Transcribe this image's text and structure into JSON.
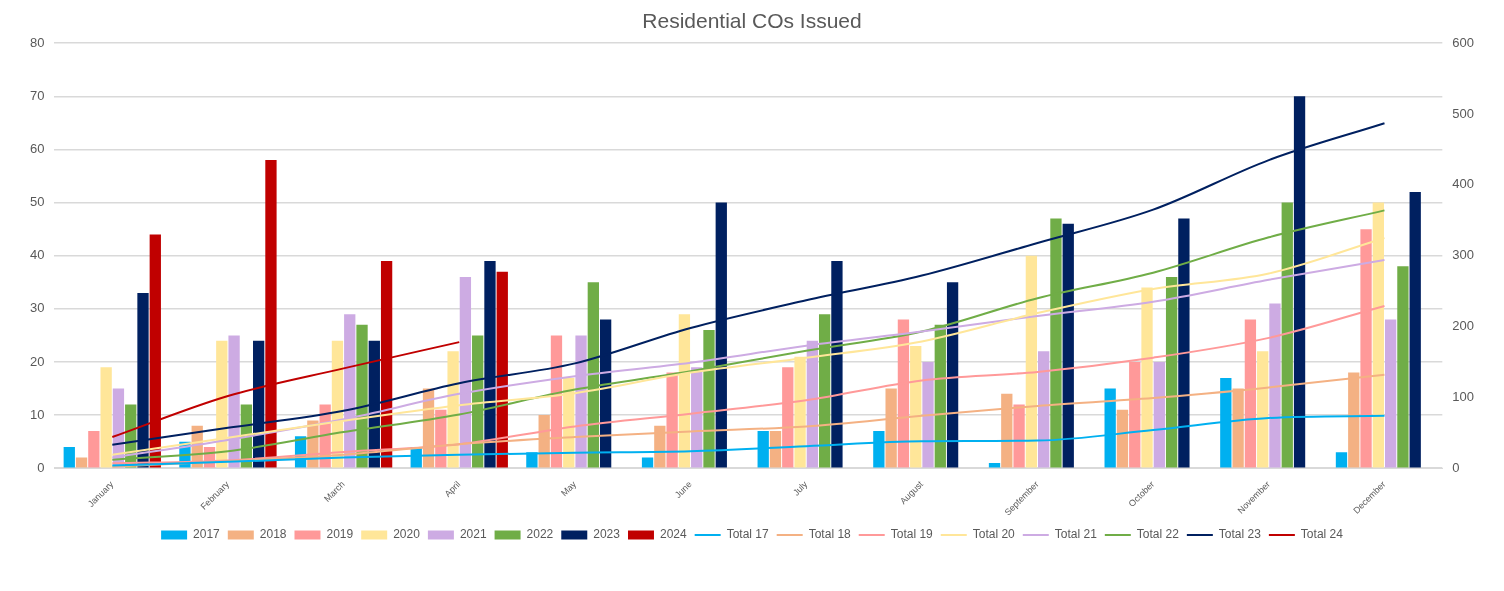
{
  "chart_data": {
    "type": "bar",
    "title": "Residential COs Issued",
    "categories": [
      "January",
      "February",
      "March",
      "April",
      "May",
      "June",
      "July",
      "August",
      "September",
      "October",
      "November",
      "December"
    ],
    "ylim": [
      0,
      80
    ],
    "yticks": [
      0,
      10,
      20,
      30,
      40,
      50,
      60,
      70,
      80
    ],
    "y2lim": [
      0,
      600
    ],
    "y2ticks": [
      0,
      100,
      200,
      300,
      400,
      500,
      600
    ],
    "grid": "y",
    "legend": "bottom",
    "marker": "none",
    "line_style": "solid",
    "series": [
      {
        "name": "2017",
        "color": "#00b0f0",
        "values": [
          4,
          5,
          6,
          4,
          3,
          2,
          7,
          7,
          1,
          15,
          17,
          3
        ]
      },
      {
        "name": "2018",
        "color": "#f4b183",
        "values": [
          2,
          8,
          9,
          15,
          10,
          8,
          7,
          15,
          14,
          11,
          15,
          18
        ]
      },
      {
        "name": "2019",
        "color": "#ff9999",
        "values": [
          7,
          4,
          12,
          11,
          25,
          18,
          19,
          28,
          12,
          20,
          28,
          45
        ]
      },
      {
        "name": "2020",
        "color": "#ffe699",
        "values": [
          19,
          24,
          24,
          22,
          17,
          29,
          21,
          23,
          40,
          34,
          22,
          50
        ]
      },
      {
        "name": "2021",
        "color": "#cdabe3",
        "values": [
          15,
          25,
          29,
          36,
          25,
          19,
          24,
          20,
          22,
          20,
          31,
          28
        ]
      },
      {
        "name": "2022",
        "color": "#70ad47",
        "values": [
          12,
          12,
          27,
          25,
          35,
          26,
          29,
          27,
          47,
          36,
          50,
          38
        ]
      },
      {
        "name": "2023",
        "color": "#002060",
        "values": [
          33,
          24,
          24,
          39,
          28,
          50,
          39,
          35,
          46,
          47,
          70,
          52
        ]
      },
      {
        "name": "2024",
        "color": "#c00000",
        "values": [
          44,
          58,
          39,
          37,
          null,
          null,
          null,
          null,
          null,
          null,
          null,
          null
        ]
      },
      {
        "name": "Total 17",
        "type": "line",
        "axis": "y2",
        "color": "#00b0f0",
        "values": [
          4,
          9,
          15,
          19,
          22,
          24,
          31,
          38,
          39,
          54,
          71,
          74
        ]
      },
      {
        "name": "Total 18",
        "type": "line",
        "axis": "y2",
        "color": "#f4b183",
        "values": [
          2,
          10,
          19,
          34,
          44,
          52,
          59,
          74,
          88,
          99,
          114,
          132
        ]
      },
      {
        "name": "Total 19",
        "type": "line",
        "axis": "y2",
        "color": "#ff9999",
        "values": [
          7,
          11,
          23,
          34,
          59,
          77,
          96,
          124,
          136,
          156,
          184,
          229
        ]
      },
      {
        "name": "Total 20",
        "type": "line",
        "axis": "y2",
        "color": "#ffe699",
        "values": [
          19,
          43,
          67,
          89,
          106,
          135,
          156,
          179,
          219,
          253,
          275,
          325
        ]
      },
      {
        "name": "Total 21",
        "type": "line",
        "axis": "y2",
        "color": "#cdabe3",
        "values": [
          15,
          40,
          69,
          105,
          130,
          149,
          173,
          193,
          215,
          235,
          266,
          294
        ]
      },
      {
        "name": "Total 22",
        "type": "line",
        "axis": "y2",
        "color": "#70ad47",
        "values": [
          12,
          24,
          51,
          76,
          111,
          137,
          166,
          193,
          240,
          276,
          326,
          364
        ]
      },
      {
        "name": "Total 23",
        "type": "line",
        "axis": "y2",
        "color": "#002060",
        "values": [
          33,
          57,
          81,
          120,
          148,
          198,
          237,
          272,
          318,
          365,
          435,
          487
        ]
      },
      {
        "name": "Total 24",
        "type": "line",
        "axis": "y2",
        "color": "#c00000",
        "values": [
          44,
          102,
          141,
          178,
          null,
          null,
          null,
          null,
          null,
          null,
          null,
          null
        ]
      }
    ]
  }
}
